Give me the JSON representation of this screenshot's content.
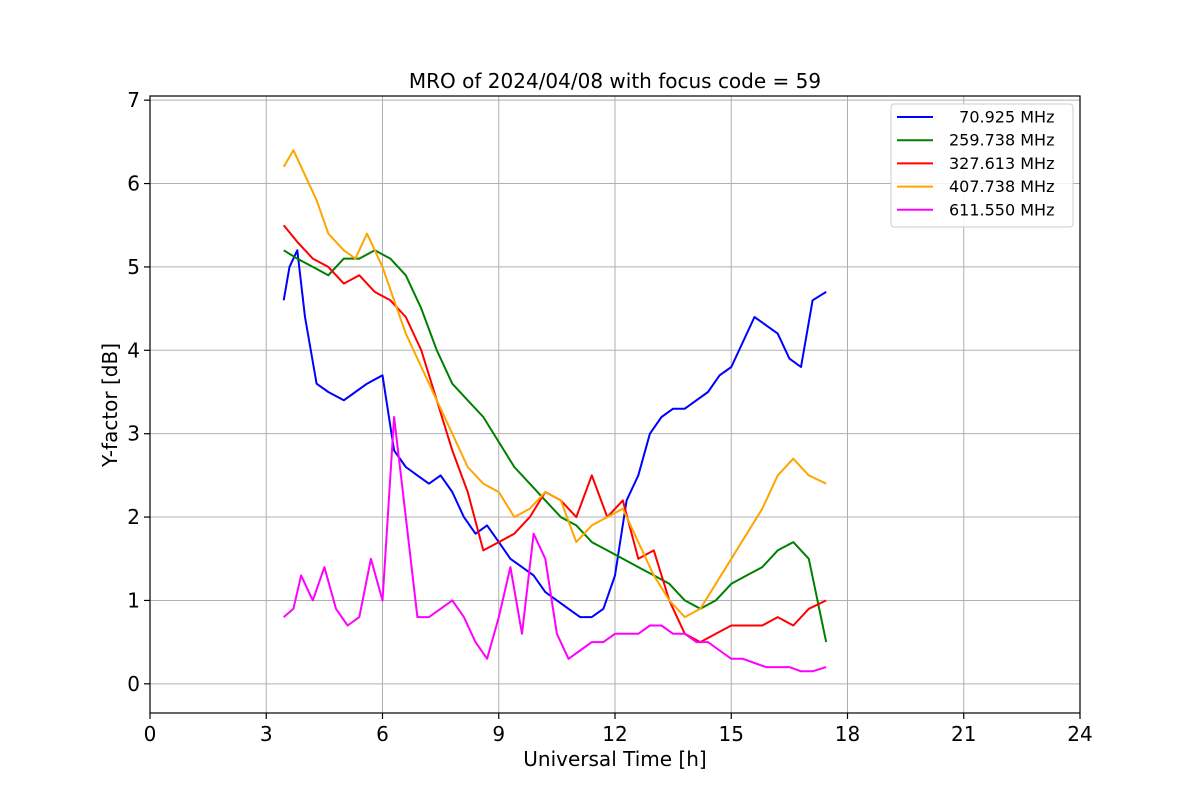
{
  "chart_data": {
    "type": "line",
    "title": "MRO of 2024/04/08 with focus code = 59",
    "xlabel": "Universal Time [h]",
    "ylabel": "Y-factor [dB]",
    "xlim": [
      0,
      24
    ],
    "ylim": [
      -0.35,
      7.05
    ],
    "xticks": [
      0,
      3,
      6,
      9,
      12,
      15,
      18,
      21,
      24
    ],
    "yticks": [
      0,
      1,
      2,
      3,
      4,
      5,
      6,
      7
    ],
    "grid": true,
    "legend_position": "top-right",
    "series": [
      {
        "name": "  70.925 MHz",
        "color": "#0000ff",
        "x": [
          3.45,
          3.6,
          3.8,
          4.0,
          4.3,
          4.6,
          5.0,
          5.3,
          5.6,
          6.0,
          6.3,
          6.6,
          6.9,
          7.2,
          7.5,
          7.8,
          8.1,
          8.4,
          8.7,
          9.0,
          9.3,
          9.6,
          9.9,
          10.2,
          10.5,
          10.8,
          11.1,
          11.4,
          11.7,
          12.0,
          12.3,
          12.6,
          12.9,
          13.2,
          13.5,
          13.8,
          14.1,
          14.4,
          14.7,
          15.0,
          15.3,
          15.6,
          15.9,
          16.2,
          16.5,
          16.8,
          17.1,
          17.45
        ],
        "y": [
          4.6,
          5.0,
          5.2,
          4.4,
          3.6,
          3.5,
          3.4,
          3.5,
          3.6,
          3.7,
          2.8,
          2.6,
          2.5,
          2.4,
          2.5,
          2.3,
          2.0,
          1.8,
          1.9,
          1.7,
          1.5,
          1.4,
          1.3,
          1.1,
          1.0,
          0.9,
          0.8,
          0.8,
          0.9,
          1.3,
          2.2,
          2.5,
          3.0,
          3.2,
          3.3,
          3.3,
          3.4,
          3.5,
          3.7,
          3.8,
          4.1,
          4.4,
          4.3,
          4.2,
          3.9,
          3.8,
          4.6,
          4.7
        ]
      },
      {
        "name": "259.738 MHz",
        "color": "#008000",
        "x": [
          3.45,
          3.8,
          4.2,
          4.6,
          5.0,
          5.4,
          5.8,
          6.2,
          6.6,
          7.0,
          7.4,
          7.8,
          8.2,
          8.6,
          9.0,
          9.4,
          9.8,
          10.2,
          10.6,
          11.0,
          11.4,
          11.8,
          12.2,
          12.6,
          13.0,
          13.4,
          13.8,
          14.2,
          14.6,
          15.0,
          15.4,
          15.8,
          16.2,
          16.6,
          17.0,
          17.45
        ],
        "y": [
          5.2,
          5.1,
          5.0,
          4.9,
          5.1,
          5.1,
          5.2,
          5.1,
          4.9,
          4.5,
          4.0,
          3.6,
          3.4,
          3.2,
          2.9,
          2.6,
          2.4,
          2.2,
          2.0,
          1.9,
          1.7,
          1.6,
          1.5,
          1.4,
          1.3,
          1.2,
          1.0,
          0.9,
          1.0,
          1.2,
          1.3,
          1.4,
          1.6,
          1.7,
          1.5,
          0.5
        ]
      },
      {
        "name": "327.613 MHz",
        "color": "#ff0000",
        "x": [
          3.45,
          3.8,
          4.2,
          4.6,
          5.0,
          5.4,
          5.8,
          6.2,
          6.6,
          7.0,
          7.4,
          7.8,
          8.2,
          8.6,
          9.0,
          9.4,
          9.8,
          10.2,
          10.6,
          11.0,
          11.4,
          11.8,
          12.2,
          12.6,
          13.0,
          13.4,
          13.8,
          14.2,
          14.6,
          15.0,
          15.4,
          15.8,
          16.2,
          16.6,
          17.0,
          17.45
        ],
        "y": [
          5.5,
          5.3,
          5.1,
          5.0,
          4.8,
          4.9,
          4.7,
          4.6,
          4.4,
          4.0,
          3.4,
          2.8,
          2.3,
          1.6,
          1.7,
          1.8,
          2.0,
          2.3,
          2.2,
          2.0,
          2.5,
          2.0,
          2.2,
          1.5,
          1.6,
          1.0,
          0.6,
          0.5,
          0.6,
          0.7,
          0.7,
          0.7,
          0.8,
          0.7,
          0.9,
          1.0
        ]
      },
      {
        "name": "407.738 MHz",
        "color": "#ffa500",
        "x": [
          3.45,
          3.7,
          4.0,
          4.3,
          4.6,
          5.0,
          5.3,
          5.6,
          6.0,
          6.3,
          6.6,
          7.0,
          7.4,
          7.8,
          8.2,
          8.6,
          9.0,
          9.4,
          9.8,
          10.2,
          10.6,
          11.0,
          11.4,
          11.8,
          12.2,
          12.6,
          13.0,
          13.4,
          13.8,
          14.2,
          14.6,
          15.0,
          15.4,
          15.8,
          16.2,
          16.6,
          17.0,
          17.45
        ],
        "y": [
          6.2,
          6.4,
          6.1,
          5.8,
          5.4,
          5.2,
          5.1,
          5.4,
          5.0,
          4.6,
          4.2,
          3.8,
          3.4,
          3.0,
          2.6,
          2.4,
          2.3,
          2.0,
          2.1,
          2.3,
          2.2,
          1.7,
          1.9,
          2.0,
          2.1,
          1.7,
          1.3,
          1.0,
          0.8,
          0.9,
          1.2,
          1.5,
          1.8,
          2.1,
          2.5,
          2.7,
          2.5,
          2.4
        ]
      },
      {
        "name": "611.550 MHz",
        "color": "#ff00ff",
        "x": [
          3.45,
          3.7,
          3.9,
          4.2,
          4.5,
          4.8,
          5.1,
          5.4,
          5.7,
          6.0,
          6.3,
          6.6,
          6.9,
          7.2,
          7.5,
          7.8,
          8.1,
          8.4,
          8.7,
          9.0,
          9.3,
          9.6,
          9.9,
          10.2,
          10.5,
          10.8,
          11.1,
          11.4,
          11.7,
          12.0,
          12.3,
          12.6,
          12.9,
          13.2,
          13.5,
          13.8,
          14.1,
          14.4,
          14.7,
          15.0,
          15.3,
          15.6,
          15.9,
          16.2,
          16.5,
          16.8,
          17.1,
          17.45
        ],
        "y": [
          0.8,
          0.9,
          1.3,
          1.0,
          1.4,
          0.9,
          0.7,
          0.8,
          1.5,
          1.0,
          3.2,
          2.0,
          0.8,
          0.8,
          0.9,
          1.0,
          0.8,
          0.5,
          0.3,
          0.8,
          1.4,
          0.6,
          1.8,
          1.5,
          0.6,
          0.3,
          0.4,
          0.5,
          0.5,
          0.6,
          0.6,
          0.6,
          0.7,
          0.7,
          0.6,
          0.6,
          0.5,
          0.5,
          0.4,
          0.3,
          0.3,
          0.25,
          0.2,
          0.2,
          0.2,
          0.15,
          0.15,
          0.2
        ]
      }
    ]
  }
}
